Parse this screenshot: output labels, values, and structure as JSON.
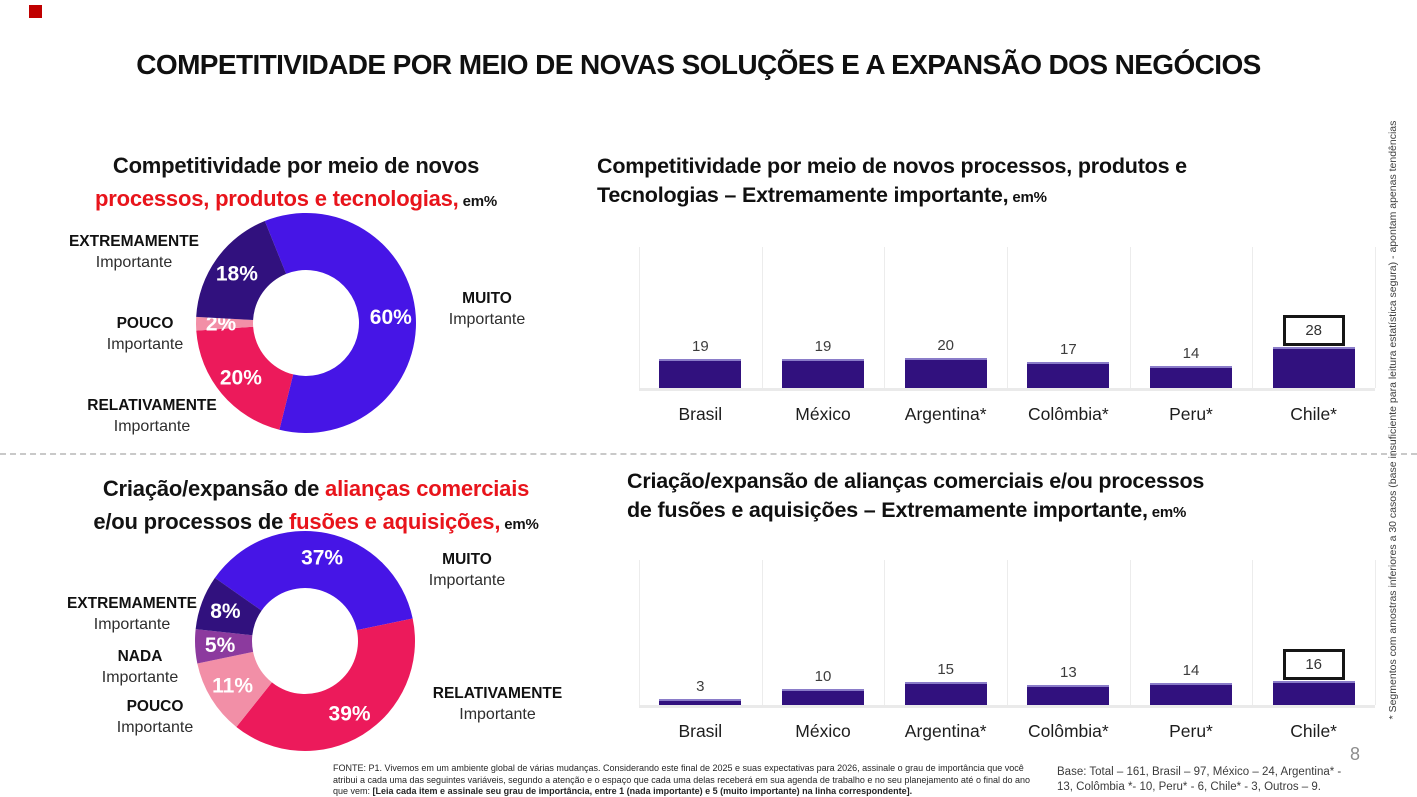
{
  "slide": {
    "title": "COMPETITIVIDADE POR MEIO DE NOVAS SOLUÇÕES E A EXPANSÃO DOS NEGÓCIOS",
    "page_number": "8",
    "accent_red": "#E8141B",
    "brand_square_color": "#C00000"
  },
  "footnotes": {
    "fonte_regular": "FONTE: P1. Vivemos em um ambiente global de várias mudanças. Considerando este final de 2025 e suas expectativas para 2026, assinale o grau de importância que você atribui a cada uma das seguintes variáveis, segundo a atenção e o espaço que cada uma delas receberá em sua agenda de trabalho e no seu planejamento até o final do ano que vem: ",
    "fonte_bold": "[Leia cada item e assinale seu grau de importância, entre 1 (nada importante) e 5 (muito importante) na linha correspondente].",
    "base": "Base: Total – 161, Brasil – 97, México – 24, Argentina* - 13, Colômbia *- 10, Peru* - 6, Chile* - 3, Outros – 9.",
    "side_note": "* Segmentos com amostras inferiores a 30 casos (base insuficiente para leitura estatística segura) - apontam apenas tendências"
  },
  "chart_data": [
    {
      "id": "donut-processos",
      "type": "pie",
      "donut": true,
      "unit": "em%",
      "rotation_deg": -22,
      "title_segments": [
        [
          {
            "text": "Competitividade por meio de novos",
            "red": false,
            "small": false
          }
        ],
        [
          {
            "text": "processos, produtos e tecnologias,",
            "red": true,
            "small": false
          },
          {
            "text": " em%",
            "red": false,
            "small": true
          }
        ]
      ],
      "slices": [
        {
          "label": "MUITO",
          "sublabel": "Importante",
          "value": 60,
          "color": "#4615E6"
        },
        {
          "label": "RELATIVAMENTE",
          "sublabel": "Importante",
          "value": 20,
          "color": "#EC1A5B"
        },
        {
          "label": "POUCO",
          "sublabel": "Importante",
          "value": 2,
          "color": "#F28FA7"
        },
        {
          "label": "EXTREMAMENTE",
          "sublabel": "Importante",
          "value": 18,
          "color": "#31117E"
        }
      ]
    },
    {
      "id": "bars-processos",
      "type": "bar",
      "unit": "em%",
      "title_line1": "Competitividade por meio de novos processos, produtos e",
      "title_line2": "Tecnologias – Extremamente importante,",
      "title_suffix": " em%",
      "categories": [
        "Brasil",
        "México",
        "Argentina*",
        "Colômbia*",
        "Peru*",
        "Chile*"
      ],
      "values": [
        19,
        19,
        20,
        17,
        14,
        28
      ],
      "highlight_index": 5,
      "bar_color": "#31117E",
      "grid": "vertical"
    },
    {
      "id": "donut-aliancas",
      "type": "pie",
      "donut": true,
      "unit": "em%",
      "rotation_deg": -55,
      "title_segments": [
        [
          {
            "text": "Criação/expansão de ",
            "red": false,
            "small": false
          },
          {
            "text": "alianças comerciais",
            "red": true,
            "small": false
          }
        ],
        [
          {
            "text": "e/ou processos de ",
            "red": false,
            "small": false
          },
          {
            "text": "fusões e aquisições,",
            "red": true,
            "small": false
          },
          {
            "text": " em%",
            "red": false,
            "small": true
          }
        ]
      ],
      "slices": [
        {
          "label": "MUITO",
          "sublabel": "Importante",
          "value": 37,
          "color": "#4615E6"
        },
        {
          "label": "RELATIVAMENTE",
          "sublabel": "Importante",
          "value": 39,
          "color": "#EC1A5B"
        },
        {
          "label": "POUCO",
          "sublabel": "Importante",
          "value": 11,
          "color": "#F28FA7"
        },
        {
          "label": "NADA",
          "sublabel": "Importante",
          "value": 5,
          "color": "#8C3A9E"
        },
        {
          "label": "EXTREMAMENTE",
          "sublabel": "Importante",
          "value": 8,
          "color": "#31117E"
        }
      ]
    },
    {
      "id": "bars-aliancas",
      "type": "bar",
      "unit": "em%",
      "title_line1": "Criação/expansão de alianças comerciais e/ou processos",
      "title_line2": "de fusões e aquisições – Extremamente importante,",
      "title_suffix": " em%",
      "categories": [
        "Brasil",
        "México",
        "Argentina*",
        "Colômbia*",
        "Peru*",
        "Chile*"
      ],
      "values": [
        3,
        10,
        15,
        13,
        14,
        16
      ],
      "highlight_index": 5,
      "bar_color": "#31117E",
      "grid": "vertical"
    }
  ]
}
